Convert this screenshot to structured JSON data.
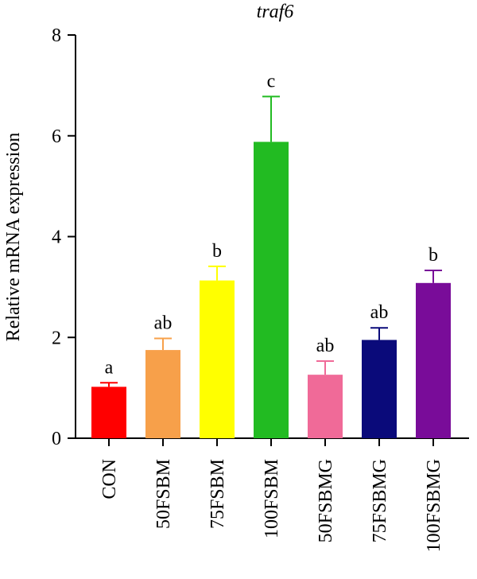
{
  "chart_data": {
    "type": "bar",
    "title": "traf6",
    "xlabel": "",
    "ylabel": "Relative mRNA expression",
    "ylim": [
      0,
      8
    ],
    "yticks": [
      "0",
      "2",
      "4",
      "6",
      "8"
    ],
    "grid": false,
    "categories": [
      "CON",
      "50FSBM",
      "75FSBM",
      "100FSBM",
      "50FSBMG",
      "75FSBMG",
      "100FSBMG"
    ],
    "values": [
      1.02,
      1.75,
      3.13,
      5.88,
      1.26,
      1.95,
      3.08
    ],
    "errors": [
      0.08,
      0.23,
      0.28,
      0.9,
      0.27,
      0.24,
      0.25
    ],
    "significance": [
      "a",
      "ab",
      "b",
      "c",
      "ab",
      "ab",
      "b"
    ],
    "colors": [
      "#ff0000",
      "#f7a04a",
      "#ffff00",
      "#22bb22",
      "#f06a98",
      "#0a0a7a",
      "#790c99"
    ]
  }
}
